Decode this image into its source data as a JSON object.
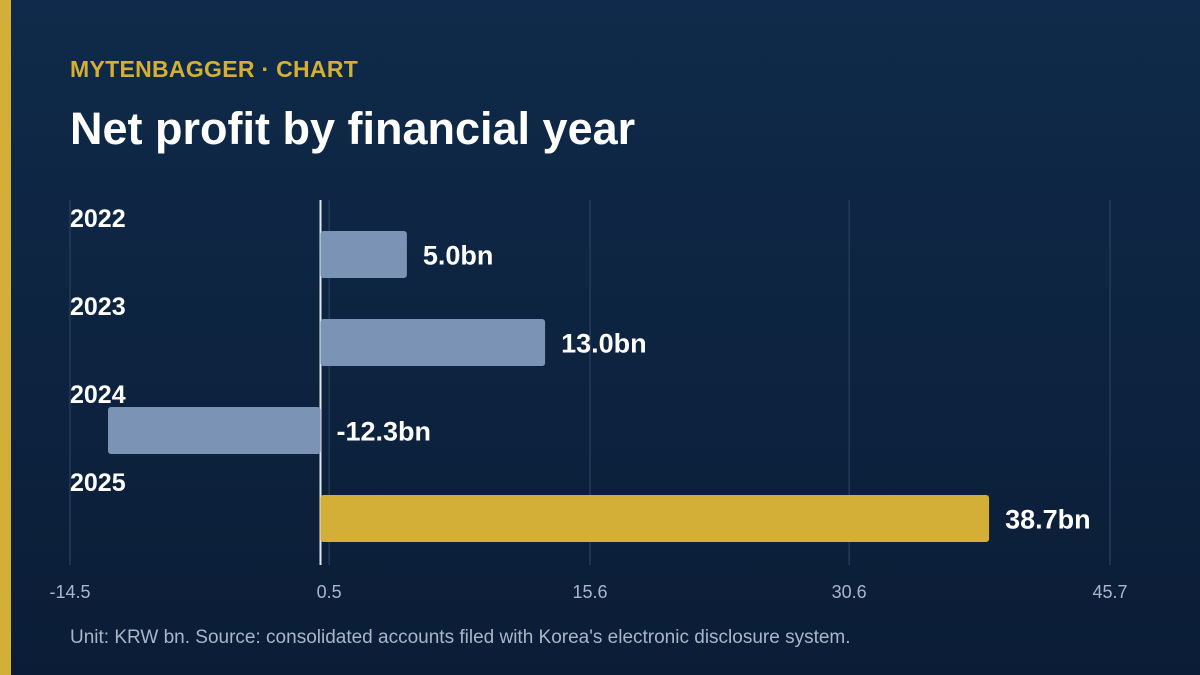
{
  "kicker": "MYTENBAGGER · CHART",
  "title": "Net profit by financial year",
  "footnote": "Unit: KRW bn. Source: consolidated accounts filed with Korea's electronic disclosure system.",
  "colors": {
    "background": "#0d2341",
    "accent": "#d4af37",
    "bar_default": "#7b93b5",
    "gridline": "#2f4766",
    "zero_line": "#dfe6ef",
    "text": "#ffffff",
    "tick_text": "#a9b6c8"
  },
  "chart_data": {
    "type": "bar",
    "orientation": "horizontal",
    "categories": [
      "2022",
      "2023",
      "2024",
      "2025"
    ],
    "values": [
      5.0,
      13.0,
      -12.3,
      38.7
    ],
    "value_labels": [
      "5.0bn",
      "13.0bn",
      "-12.3bn",
      "38.7bn"
    ],
    "highlight_index": 3,
    "x_ticks": [
      -14.5,
      0.5,
      15.6,
      30.6,
      45.7
    ],
    "x_tick_labels": [
      "-14.5",
      "0.5",
      "15.6",
      "30.6",
      "45.7"
    ],
    "xlim": [
      -14.5,
      45.7
    ],
    "grid": true,
    "title": "Net profit by financial year",
    "xlabel": "",
    "ylabel": ""
  }
}
